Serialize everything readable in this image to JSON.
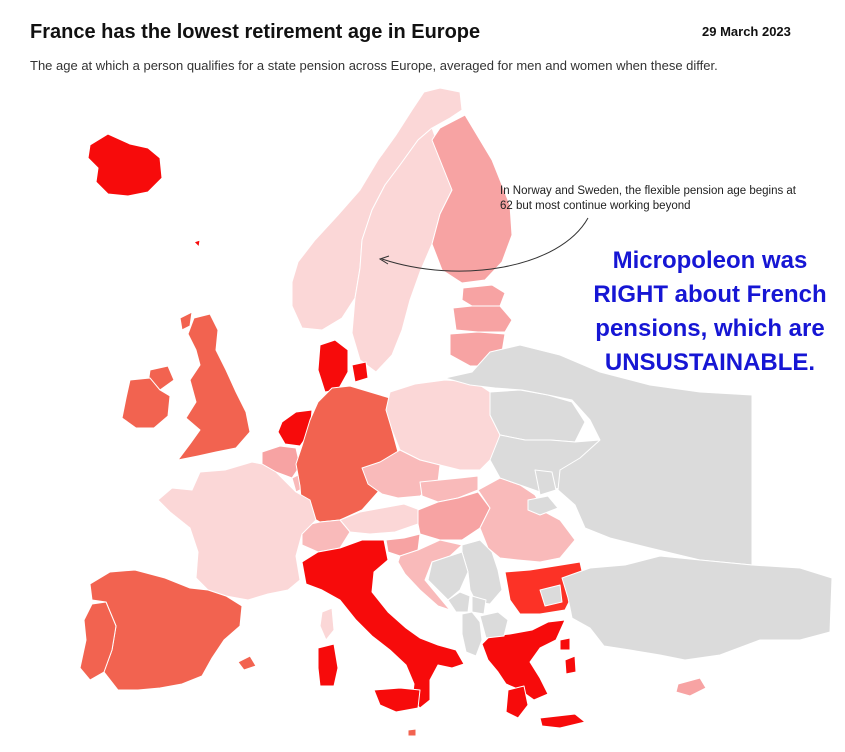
{
  "header": {
    "title": "France has the lowest retirement age in Europe",
    "date": "29 March 2023",
    "subtitle": "The age at which a person qualifies for a state pension across Europe, averaged for men and women when these differ."
  },
  "annotation": {
    "line1": "In Norway and Sweden, the flexible pension age begins at",
    "line2": "62 but most continue working beyond"
  },
  "overlay": {
    "lines": [
      "Micropoleon was",
      "RIGHT about French",
      "pensions, which are",
      "UNSUSTAINABLE."
    ],
    "color": "#1616d4"
  },
  "colors": {
    "very_light": "#fbd7d7",
    "light": "#f9baba",
    "mid_light": "#f7a3a3",
    "medium": "#f26350",
    "dark": "#fc3226",
    "darkest": "#f70b0b",
    "no_data": "#dbdbdb",
    "border": "#ffffff"
  },
  "countries": [
    {
      "name": "Iceland",
      "shade": "darkest"
    },
    {
      "name": "Norway",
      "shade": "very_light"
    },
    {
      "name": "Sweden",
      "shade": "very_light"
    },
    {
      "name": "Finland",
      "shade": "mid_light"
    },
    {
      "name": "Estonia",
      "shade": "mid_light"
    },
    {
      "name": "Latvia",
      "shade": "mid_light"
    },
    {
      "name": "Lithuania",
      "shade": "mid_light"
    },
    {
      "name": "Denmark",
      "shade": "darkest"
    },
    {
      "name": "United Kingdom",
      "shade": "medium"
    },
    {
      "name": "Ireland",
      "shade": "medium"
    },
    {
      "name": "Netherlands",
      "shade": "darkest"
    },
    {
      "name": "Belgium",
      "shade": "mid_light"
    },
    {
      "name": "Luxembourg",
      "shade": "light"
    },
    {
      "name": "Germany",
      "shade": "medium"
    },
    {
      "name": "Poland",
      "shade": "very_light"
    },
    {
      "name": "Czechia",
      "shade": "light"
    },
    {
      "name": "Slovakia",
      "shade": "light"
    },
    {
      "name": "Austria",
      "shade": "very_light"
    },
    {
      "name": "Switzerland",
      "shade": "light"
    },
    {
      "name": "Hungary",
      "shade": "mid_light"
    },
    {
      "name": "Romania",
      "shade": "light"
    },
    {
      "name": "Slovenia",
      "shade": "mid_light"
    },
    {
      "name": "Croatia",
      "shade": "light"
    },
    {
      "name": "France",
      "shade": "very_light"
    },
    {
      "name": "Spain",
      "shade": "medium"
    },
    {
      "name": "Portugal",
      "shade": "medium"
    },
    {
      "name": "Italy",
      "shade": "darkest"
    },
    {
      "name": "Bulgaria",
      "shade": "dark"
    },
    {
      "name": "Greece",
      "shade": "darkest"
    },
    {
      "name": "Malta",
      "shade": "medium"
    },
    {
      "name": "Cyprus",
      "shade": "mid_light"
    },
    {
      "name": "Belarus",
      "shade": "no_data"
    },
    {
      "name": "Ukraine",
      "shade": "no_data"
    },
    {
      "name": "Russia",
      "shade": "no_data"
    },
    {
      "name": "Moldova",
      "shade": "no_data"
    },
    {
      "name": "Serbia",
      "shade": "no_data"
    },
    {
      "name": "Bosnia and Herzegovina",
      "shade": "no_data"
    },
    {
      "name": "Montenegro",
      "shade": "no_data"
    },
    {
      "name": "Albania",
      "shade": "no_data"
    },
    {
      "name": "North Macedonia",
      "shade": "no_data"
    },
    {
      "name": "Kosovo",
      "shade": "no_data"
    },
    {
      "name": "Turkey",
      "shade": "no_data"
    }
  ]
}
